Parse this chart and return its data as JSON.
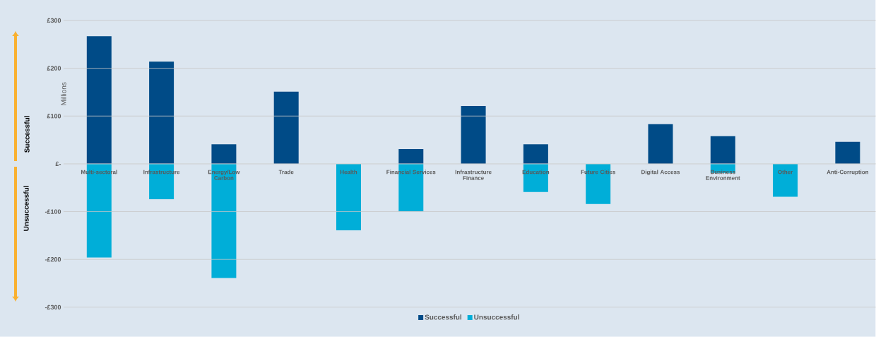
{
  "chart_data": {
    "type": "bar",
    "ylabel": "Millions",
    "categories": [
      "Multi-sectoral",
      "Infrastructure",
      "Energy/Low Carbon",
      "Trade",
      "Health",
      "Financial Services",
      "Infrastructure Finance",
      "Education",
      "Future Cities",
      "Digital Access",
      "Business Environment",
      "Other",
      "Anti-Corruption"
    ],
    "series": [
      {
        "name": "Successful",
        "color": "#004b87",
        "values": [
          267,
          214,
          41,
          151,
          null,
          31,
          121,
          41,
          null,
          83,
          58,
          null,
          46
        ]
      },
      {
        "name": "Unsuccessful",
        "color": "#00aed8",
        "values": [
          -196,
          -74,
          -239,
          null,
          -139,
          -99,
          null,
          -59,
          -84,
          null,
          -19,
          -69,
          null
        ]
      }
    ],
    "ylim": [
      -300,
      300
    ],
    "yticks": [
      {
        "value": 300,
        "label": "£300"
      },
      {
        "value": 200,
        "label": "£200"
      },
      {
        "value": 100,
        "label": "£100"
      },
      {
        "value": 0,
        "label": "£-"
      },
      {
        "value": -100,
        "label": "-£100"
      },
      {
        "value": -200,
        "label": "-£200"
      },
      {
        "value": -300,
        "label": "-£300"
      }
    ],
    "grid": "y",
    "legend": "bottom",
    "annotations": [
      "Successful",
      "Unsuccessful"
    ]
  }
}
